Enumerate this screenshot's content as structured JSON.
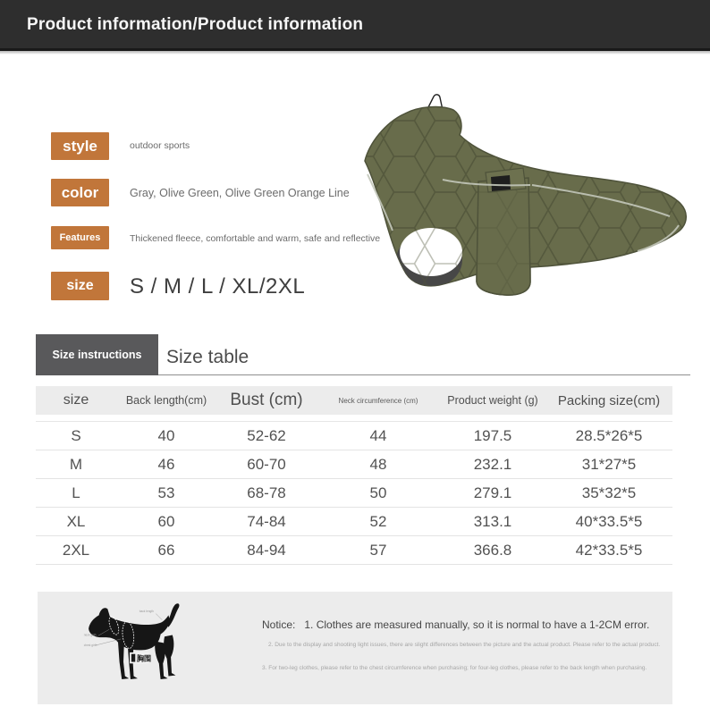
{
  "header": {
    "title": "Product information/Product information"
  },
  "product_info": {
    "style_label": "style",
    "style_value": "outdoor sports",
    "color_label": "color",
    "color_value": "Gray, Olive Green, Olive Green Orange Line",
    "features_label": "Features",
    "features_value": "Thickened fleece, comfortable and warm, safe and reflective",
    "size_label": "size",
    "size_value": "S / M / L / XL/2XL"
  },
  "size_section": {
    "tab_label": "Size instructions",
    "heading": "Size table"
  },
  "size_table": {
    "headers": [
      "size",
      "Back length(cm)",
      "Bust (cm)",
      "Neck circumference (cm)",
      "Product weight (g)",
      "Packing size(cm)"
    ],
    "rows": [
      [
        "S",
        "40",
        "52-62",
        "44",
        "197.5",
        "28.5*26*5"
      ],
      [
        "M",
        "46",
        "60-70",
        "48",
        "232.1",
        "31*27*5"
      ],
      [
        "L",
        "53",
        "68-78",
        "50",
        "279.1",
        "35*32*5"
      ],
      [
        "XL",
        "60",
        "74-84",
        "52",
        "313.1",
        "40*33.5*5"
      ],
      [
        "2XL",
        "66",
        "84-94",
        "57",
        "366.8",
        "42*33.5*5"
      ]
    ]
  },
  "notice": {
    "label": "Notice:",
    "line1": "1. Clothes are measured manually, so it is normal to have a 1-2CM error.",
    "line2": "2. Due to the display and shooting light issues, there are slight differences between the picture and the actual product. Please refer to the actual product.",
    "line3": "3. For two-leg clothes, please refer to the chest circumference when purchasing; for four-leg clothes, please refer to the back length when purchasing."
  },
  "dog_diagram": {
    "back_label": "back length",
    "neck_label": "neck girth",
    "chest_label": "chest girth",
    "badge": "胸围"
  },
  "colors": {
    "accent_orange": "#c1763a",
    "header_bar": "#2e2e2e",
    "tab_gray": "#59595b",
    "jacket_olive": "#686c4b",
    "table_header_bg": "#ececec",
    "panel_bg": "#ececec"
  }
}
